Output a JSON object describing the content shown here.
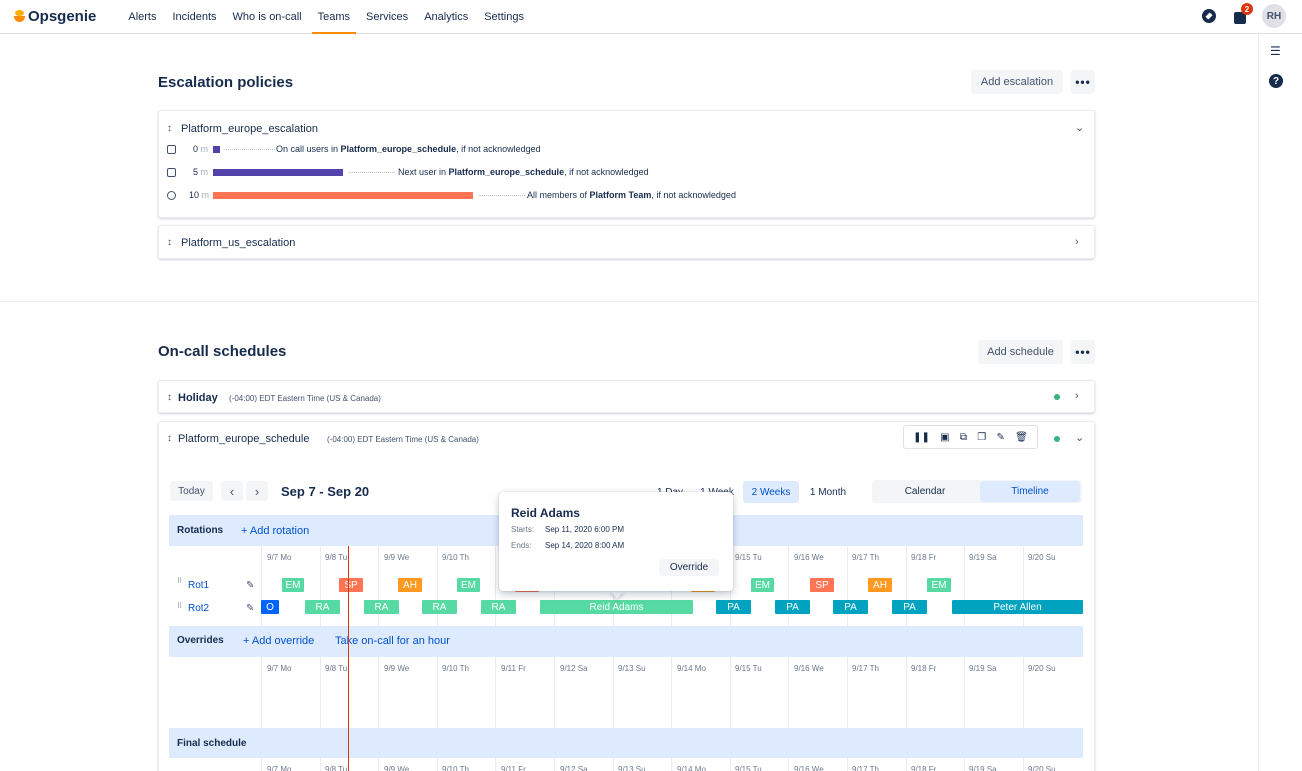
{
  "nav": {
    "brand": "Opsgenie",
    "items": [
      "Alerts",
      "Incidents",
      "Who is on-call",
      "Teams",
      "Services",
      "Analytics",
      "Settings"
    ],
    "active": "Teams",
    "notification_count": "2",
    "avatar_initials": "RH",
    "accent": "#FF8B00"
  },
  "escalation": {
    "title": "Escalation policies",
    "add_label": "Add escalation",
    "more_label": "•••",
    "policies": [
      {
        "name": "Platform_europe_escalation",
        "rules": [
          {
            "time": "0",
            "unit": "m",
            "prefix": "On call users in ",
            "target": "Platform_europe_schedule",
            "suffix": ", if not acknowledged"
          },
          {
            "time": "5",
            "unit": "m",
            "prefix": "Next user in ",
            "target": "Platform_europe_schedule",
            "suffix": ", if not acknowledged"
          },
          {
            "time": "10",
            "unit": "m",
            "prefix": "All members of ",
            "target": "Platform Team",
            "suffix": ", if not acknowledged"
          }
        ]
      },
      {
        "name": "Platform_us_escalation"
      }
    ]
  },
  "schedules": {
    "title": "On-call schedules",
    "add_label": "Add schedule",
    "more_label": "•••",
    "items": [
      {
        "name": "Holiday",
        "tz": "(-04:00) EDT Eastern Time (US & Canada)"
      },
      {
        "name": "Platform_europe_schedule",
        "tz": "(-04:00) EDT Eastern Time (US & Canada)"
      }
    ],
    "toolbar": {
      "today": "Today",
      "prev": "‹",
      "next": "›",
      "range": "Sep 7 - Sep 20",
      "periods": [
        "1 Day",
        "1 Week",
        "2 Weeks",
        "1 Month"
      ],
      "active_period": "2 Weeks",
      "views": [
        "Calendar",
        "Timeline"
      ],
      "active_view": "Timeline"
    },
    "days": [
      "9/7 Mo",
      "9/8 Tu",
      "9/9 We",
      "9/10 Th",
      "9/11 Fr",
      "9/12 Sa",
      "9/13 Su",
      "9/14 Mo",
      "9/15 Tu",
      "9/16 We",
      "9/17 Th",
      "9/18 Fr",
      "9/19 Sa",
      "9/20 Su"
    ],
    "rotations_label": "Rotations",
    "add_rotation": "+ Add rotation",
    "overrides_label": "Overrides",
    "add_override": "+ Add override",
    "take_oncall": "Take on-call for an hour",
    "final_label": "Final schedule",
    "rotations": [
      {
        "name": "Rot1",
        "chips": [
          {
            "label": "EM",
            "color": "#57D9A3"
          },
          {
            "label": "SP",
            "color": "#FF7452"
          },
          {
            "label": "AH",
            "color": "#FF991F"
          },
          {
            "label": "EM",
            "color": "#57D9A3"
          },
          {
            "label": "",
            "color": "#FF7452"
          },
          {
            "label": "",
            "color": "#FF991F"
          },
          {
            "label": "EM",
            "color": "#57D9A3"
          },
          {
            "label": "SP",
            "color": "#FF7452"
          },
          {
            "label": "AH",
            "color": "#FF991F"
          },
          {
            "label": "EM",
            "color": "#57D9A3"
          }
        ]
      },
      {
        "name": "Rot2",
        "chips": [
          {
            "label": "O",
            "color": "#0065FF"
          },
          {
            "label": "RA",
            "color": "#57D9A3"
          },
          {
            "label": "RA",
            "color": "#57D9A3"
          },
          {
            "label": "RA",
            "color": "#57D9A3"
          },
          {
            "label": "RA",
            "color": "#57D9A3"
          },
          {
            "label": "Reid Adams",
            "color": "#57D9A3"
          },
          {
            "label": "PA",
            "color": "#00A3BF"
          },
          {
            "label": "PA",
            "color": "#00A3BF"
          },
          {
            "label": "PA",
            "color": "#00A3BF"
          },
          {
            "label": "PA",
            "color": "#00A3BF"
          },
          {
            "label": "Peter Allen",
            "color": "#00A3BF"
          }
        ]
      }
    ],
    "popover": {
      "name": "Reid Adams",
      "starts_label": "Starts:",
      "starts": "Sep 11, 2020 6:00 PM",
      "ends_label": "Ends:",
      "ends": "Sep 14, 2020 8:00 AM",
      "action": "Override"
    }
  }
}
